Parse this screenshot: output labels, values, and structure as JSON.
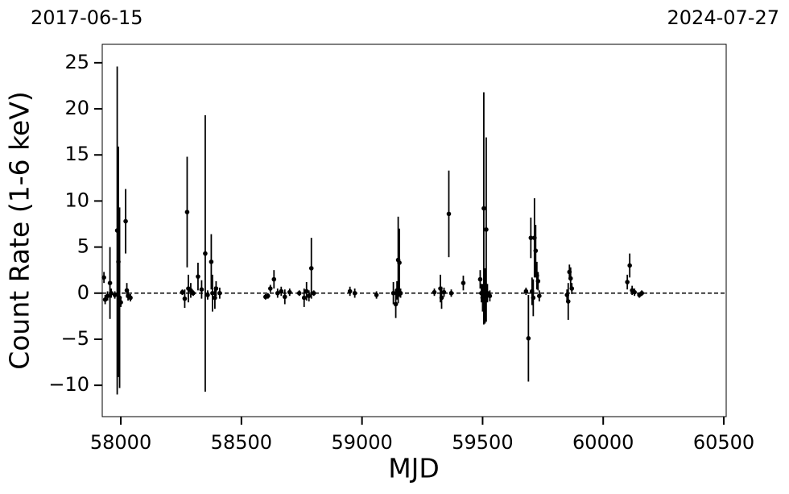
{
  "chart_data": {
    "type": "scatter",
    "annotations": [
      "2017-06-15",
      "2024-07-27"
    ],
    "x_label": "MJD",
    "y_label": "Count Rate (1-6 keV)",
    "color": "#000000",
    "hline": 0,
    "xlim": [
      57923,
      60510
    ],
    "ylim": [
      -13.4,
      27.0
    ],
    "xticks": [
      58000,
      58500,
      59000,
      59500,
      60000,
      60500
    ],
    "yticks": [
      {
        "value": -10,
        "label": "−10"
      },
      {
        "value": -5,
        "label": "−5"
      },
      0,
      5,
      10,
      15,
      20,
      25
    ],
    "x": [
      57930,
      57935,
      57945,
      57955,
      57960,
      57975,
      57985,
      57990,
      57995,
      58000,
      58020,
      58025,
      58030,
      58040,
      58255,
      58265,
      58275,
      58280,
      58290,
      58300,
      58320,
      58335,
      58350,
      58360,
      58375,
      58380,
      58390,
      58395,
      58410,
      58600,
      58610,
      58620,
      58635,
      58650,
      58665,
      58680,
      58700,
      58740,
      58760,
      58770,
      58780,
      58790,
      58800,
      58950,
      58970,
      59060,
      59130,
      59140,
      59145,
      59150,
      59155,
      59160,
      59300,
      59325,
      59330,
      59340,
      59360,
      59370,
      59420,
      59490,
      59495,
      59500,
      59505,
      59510,
      59515,
      59520,
      59530,
      59680,
      59690,
      59700,
      59705,
      59710,
      59715,
      59720,
      59725,
      59730,
      59735,
      59850,
      59855,
      59860,
      59865,
      59870,
      60100,
      60110,
      60120,
      60130,
      60150,
      60160
    ],
    "values": [
      1.7,
      -0.7,
      -0.3,
      1.1,
      0.0,
      -0.2,
      6.8,
      3.4,
      -0.5,
      -1.0,
      7.8,
      0.3,
      -0.3,
      -0.5,
      0.1,
      -0.6,
      8.8,
      0.5,
      0.3,
      0.0,
      1.8,
      0.4,
      4.3,
      -0.2,
      3.4,
      0.0,
      -0.5,
      0.5,
      0.0,
      -0.4,
      -0.3,
      0.5,
      1.5,
      0.0,
      0.2,
      -0.4,
      0.1,
      0.0,
      -0.5,
      0.2,
      -0.3,
      2.7,
      0.0,
      0.2,
      0.0,
      -0.2,
      0.0,
      -1.2,
      0.3,
      3.6,
      3.3,
      0.0,
      0.1,
      0.5,
      -0.5,
      0.1,
      8.6,
      0.0,
      1.1,
      1.5,
      0.0,
      -0.5,
      9.2,
      -0.3,
      6.9,
      0.0,
      -0.3,
      0.2,
      -4.9,
      6.0,
      0.2,
      -0.5,
      6.0,
      4.6,
      1.9,
      1.3,
      -0.3,
      -0.2,
      -0.9,
      2.3,
      1.6,
      0.5,
      1.2,
      3.0,
      0.3,
      0.1,
      -0.2,
      0.0
    ],
    "errors": [
      0.6,
      0.5,
      0.5,
      3.9,
      0.5,
      0.4,
      17.8,
      12.5,
      9.8,
      0.5,
      3.5,
      0.8,
      0.5,
      0.4,
      0.3,
      1.0,
      6.0,
      1.5,
      0.8,
      0.3,
      1.5,
      1.0,
      15.0,
      0.5,
      3.0,
      2.0,
      1.2,
      0.8,
      0.6,
      0.3,
      0.3,
      0.4,
      1.0,
      0.5,
      0.5,
      0.8,
      0.4,
      0.3,
      1.0,
      1.0,
      0.6,
      3.3,
      0.3,
      0.5,
      0.5,
      0.4,
      1.2,
      1.5,
      1.0,
      4.7,
      3.7,
      0.5,
      0.4,
      1.5,
      1.2,
      0.5,
      4.7,
      0.4,
      0.8,
      1.0,
      1.0,
      1.5,
      12.6,
      3.0,
      10.0,
      1.0,
      0.6,
      0.4,
      4.7,
      2.2,
      1.5,
      2.0,
      4.3,
      2.8,
      1.5,
      1.0,
      0.6,
      0.6,
      2.0,
      0.8,
      1.2,
      0.6,
      0.8,
      1.3,
      0.5,
      0.4,
      0.3,
      0.3
    ]
  }
}
